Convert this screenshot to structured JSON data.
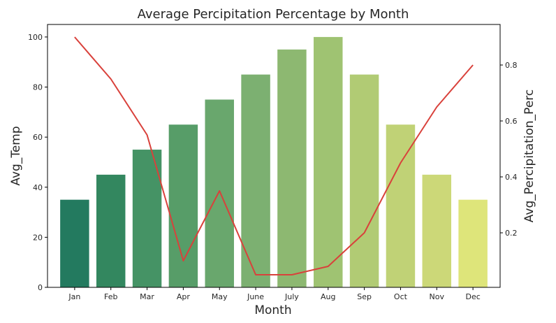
{
  "chart_data": {
    "type": "bar",
    "title": "Average Percipitation Percentage by Month",
    "xlabel": "Month",
    "ylabel": "Avg_Temp",
    "ylabel_right": "Avg_Percipitation_Perc",
    "categories": [
      "Jan",
      "Feb",
      "Mar",
      "Apr",
      "May",
      "June",
      "July",
      "Aug",
      "Sep",
      "Oct",
      "Nov",
      "Dec"
    ],
    "ylim": [
      0,
      105
    ],
    "yticks": [
      0,
      20,
      40,
      60,
      80,
      100
    ],
    "ylim_right": [
      0.005,
      0.945
    ],
    "yticks_right": [
      0.2,
      0.4,
      0.6,
      0.8
    ],
    "series": [
      {
        "type": "bar",
        "values": [
          35,
          45,
          55,
          65,
          75,
          85,
          95,
          100,
          85,
          65,
          45,
          35
        ]
      },
      {
        "type": "line",
        "axis": "right",
        "color": "#d9413b",
        "values": [
          0.9,
          0.75,
          0.55,
          0.1,
          0.35,
          0.05,
          0.05,
          0.08,
          0.2,
          0.45,
          0.65,
          0.8
        ]
      }
    ],
    "bar_colors": [
      "#237a5f",
      "#33875f",
      "#459365",
      "#579d68",
      "#69a76d",
      "#7cb071",
      "#8db871",
      "#9fc372",
      "#b1cb74",
      "#c0d276",
      "#ccd878",
      "#dee57a"
    ],
    "grid": false,
    "legend": "none"
  }
}
